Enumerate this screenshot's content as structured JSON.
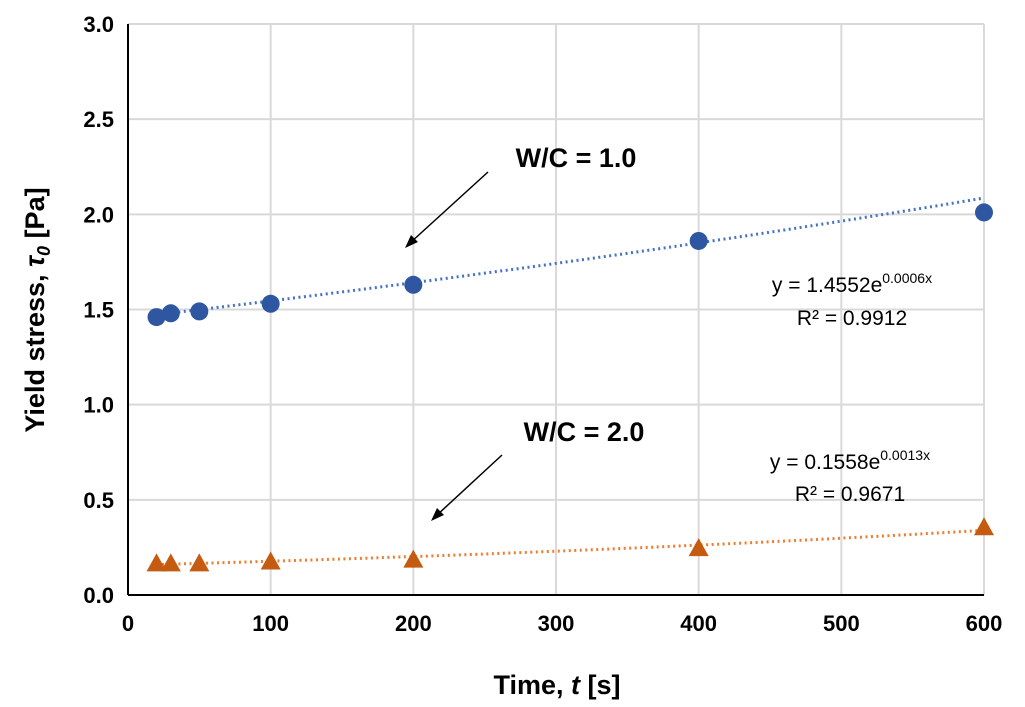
{
  "chart_data": {
    "type": "scatter",
    "xlabel": {
      "prefix": "Time, ",
      "symbol": "t",
      "suffix": " [s]"
    },
    "ylabel": {
      "prefix": "Yield stress, ",
      "symbol": "τ",
      "sub": "0",
      "suffix": " [Pa]"
    },
    "xlim": [
      0,
      600
    ],
    "ylim": [
      0,
      3.0
    ],
    "xticks": [
      "0",
      "100",
      "200",
      "300",
      "400",
      "500",
      "600"
    ],
    "yticks": [
      "0.0",
      "0.5",
      "1.0",
      "1.5",
      "2.0",
      "2.5",
      "3.0"
    ],
    "grid": true,
    "series": [
      {
        "name": "W/C = 1.0",
        "marker": "circle",
        "color": "#2f56a0",
        "trend_color": "#4472c4",
        "x": [
          20,
          30,
          50,
          100,
          200,
          400,
          600
        ],
        "y": [
          1.46,
          1.48,
          1.49,
          1.53,
          1.63,
          1.86,
          2.01
        ],
        "trendline": {
          "type": "exponential",
          "a": 1.4552,
          "b": 0.0006,
          "equation_base": "y = 1.4552e",
          "equation_exp": "0.0006x",
          "r2": "R² = 0.9912"
        }
      },
      {
        "name": "W/C = 2.0",
        "marker": "triangle",
        "color": "#c55a11",
        "trend_color": "#ed7d31",
        "x": [
          20,
          30,
          50,
          100,
          200,
          400,
          600
        ],
        "y": [
          0.16,
          0.16,
          0.16,
          0.17,
          0.18,
          0.24,
          0.35
        ],
        "trendline": {
          "type": "exponential",
          "a": 0.1558,
          "b": 0.0013,
          "equation_base": "y = 0.1558e",
          "equation_exp": "0.0013x",
          "r2": "R² = 0.9671"
        }
      }
    ]
  }
}
